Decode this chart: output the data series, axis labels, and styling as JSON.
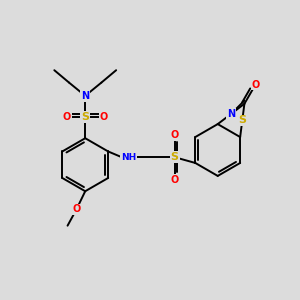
{
  "bg_color": "#dcdcdc",
  "bond_color": "#000000",
  "bond_lw": 1.4,
  "figsize": [
    3.0,
    3.0
  ],
  "dpi": 100,
  "atom_colors": {
    "C": "#000000",
    "N": "#0000ff",
    "O": "#ff0000",
    "S": "#ccaa00",
    "H": "#555555"
  },
  "font_size": 7.0
}
